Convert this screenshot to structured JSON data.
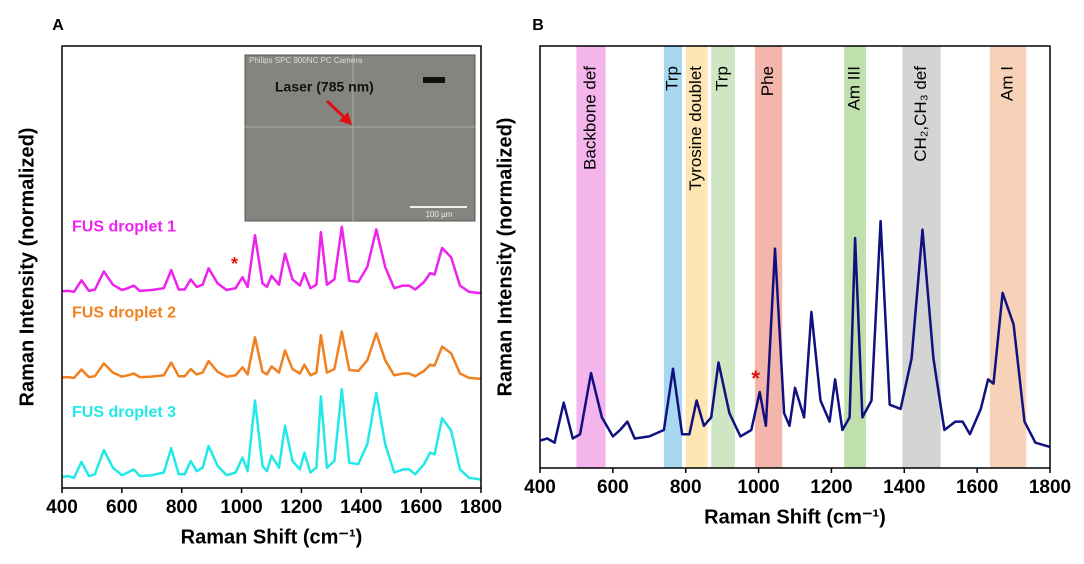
{
  "chart_data": [
    {
      "type": "line",
      "panel_label": "A",
      "xlabel": "Raman Shift (cm⁻¹)",
      "ylabel": "Raman Intensity (normalized)",
      "x": [
        400,
        420,
        440,
        465,
        490,
        510,
        540,
        570,
        600,
        620,
        640,
        660,
        700,
        740,
        765,
        790,
        810,
        830,
        850,
        870,
        890,
        920,
        950,
        980,
        1003,
        1020,
        1045,
        1070,
        1085,
        1100,
        1125,
        1145,
        1170,
        1195,
        1210,
        1230,
        1250,
        1265,
        1285,
        1310,
        1335,
        1360,
        1390,
        1420,
        1450,
        1480,
        1510,
        1540,
        1560,
        1580,
        1610,
        1630,
        1645,
        1670,
        1700,
        1730,
        1760,
        1780,
        1800
      ],
      "xlim": [
        400,
        1800
      ],
      "xticks": [
        400,
        600,
        800,
        1000,
        1200,
        1400,
        1600,
        1800
      ],
      "ylim": [
        0,
        10
      ],
      "series": [
        {
          "name": "FUS droplet 1",
          "color": "#ee22ee",
          "values": [
            4.45,
            4.46,
            4.44,
            4.7,
            4.46,
            4.49,
            4.9,
            4.6,
            4.48,
            4.52,
            4.58,
            4.46,
            4.48,
            4.52,
            4.93,
            4.49,
            4.49,
            4.72,
            4.55,
            4.6,
            4.97,
            4.63,
            4.48,
            4.52,
            4.77,
            4.55,
            5.72,
            4.63,
            4.55,
            4.8,
            4.6,
            5.3,
            4.72,
            4.58,
            4.86,
            4.52,
            4.6,
            5.79,
            4.6,
            4.72,
            5.91,
            4.69,
            4.66,
            5.0,
            5.85,
            5.0,
            4.52,
            4.58,
            4.58,
            4.49,
            4.66,
            4.86,
            4.83,
            5.43,
            5.22,
            4.58,
            4.44,
            4.42,
            4.41
          ]
        },
        {
          "name": "FUS droplet 2",
          "color": "#f08020",
          "values": [
            2.5,
            2.51,
            2.49,
            2.68,
            2.51,
            2.53,
            2.82,
            2.61,
            2.52,
            2.55,
            2.59,
            2.51,
            2.52,
            2.55,
            2.84,
            2.53,
            2.53,
            2.69,
            2.57,
            2.61,
            2.87,
            2.63,
            2.52,
            2.55,
            2.73,
            2.57,
            3.41,
            2.63,
            2.57,
            2.75,
            2.61,
            3.11,
            2.69,
            2.59,
            2.79,
            2.55,
            2.61,
            3.46,
            2.61,
            2.69,
            3.54,
            2.67,
            2.65,
            2.89,
            3.5,
            2.89,
            2.55,
            2.59,
            2.59,
            2.53,
            2.65,
            2.79,
            2.77,
            3.2,
            3.05,
            2.59,
            2.49,
            2.48,
            2.47
          ]
        },
        {
          "name": "FUS droplet 3",
          "color": "#22e8e8",
          "values": [
            0.25,
            0.27,
            0.23,
            0.59,
            0.27,
            0.31,
            0.86,
            0.46,
            0.29,
            0.35,
            0.42,
            0.27,
            0.29,
            0.35,
            0.9,
            0.31,
            0.31,
            0.61,
            0.38,
            0.46,
            0.95,
            0.5,
            0.29,
            0.35,
            0.69,
            0.38,
            1.98,
            0.5,
            0.38,
            0.73,
            0.46,
            1.41,
            0.61,
            0.42,
            0.8,
            0.35,
            0.46,
            2.07,
            0.46,
            0.61,
            2.23,
            0.57,
            0.54,
            0.99,
            2.15,
            0.99,
            0.35,
            0.42,
            0.42,
            0.31,
            0.54,
            0.8,
            0.76,
            1.58,
            1.3,
            0.42,
            0.23,
            0.21,
            0.19
          ]
        }
      ],
      "marker": "*",
      "inset": {
        "camera": "Philips SPC 900NC PC Camera",
        "label": "Laser (785 nm)",
        "scale": "100 µm"
      }
    },
    {
      "type": "line",
      "panel_label": "B",
      "xlabel": "Raman Shift (cm⁻¹)",
      "ylabel": "Raman Intensity (normalized)",
      "x": [
        400,
        420,
        440,
        465,
        490,
        510,
        540,
        570,
        600,
        620,
        640,
        660,
        700,
        740,
        765,
        790,
        810,
        830,
        850,
        870,
        890,
        920,
        950,
        980,
        1003,
        1020,
        1045,
        1070,
        1085,
        1100,
        1125,
        1145,
        1170,
        1195,
        1210,
        1230,
        1250,
        1265,
        1285,
        1310,
        1335,
        1360,
        1390,
        1420,
        1450,
        1480,
        1510,
        1540,
        1560,
        1580,
        1610,
        1630,
        1645,
        1670,
        1700,
        1730,
        1760,
        1780,
        1800
      ],
      "xlim": [
        400,
        1800
      ],
      "xticks": [
        400,
        600,
        800,
        1000,
        1200,
        1400,
        1600,
        1800
      ],
      "ylim": [
        0,
        10
      ],
      "series": [
        {
          "color": "#101080",
          "values": [
            0.65,
            0.7,
            0.6,
            1.55,
            0.7,
            0.8,
            2.25,
            1.2,
            0.75,
            0.9,
            1.1,
            0.7,
            0.75,
            0.9,
            2.35,
            0.8,
            0.8,
            1.6,
            1.0,
            1.2,
            2.5,
            1.3,
            0.75,
            0.9,
            1.8,
            1.0,
            5.2,
            1.3,
            1.0,
            1.9,
            1.2,
            3.7,
            1.6,
            1.1,
            2.1,
            0.9,
            1.2,
            5.45,
            1.2,
            1.6,
            5.85,
            1.5,
            1.4,
            2.6,
            5.65,
            2.6,
            0.9,
            1.1,
            1.1,
            0.8,
            1.4,
            2.1,
            2.0,
            4.15,
            3.4,
            1.1,
            0.6,
            0.55,
            0.5
          ]
        }
      ],
      "marker": "*",
      "bands": [
        {
          "label": "Backbone def",
          "range": [
            500,
            580
          ],
          "color": "#f4b4ec"
        },
        {
          "label": "Trp",
          "range": [
            740,
            790
          ],
          "color": "#a8d8f0"
        },
        {
          "label": "Tyrosine doublet",
          "range": [
            800,
            860
          ],
          "color": "#fde6b4"
        },
        {
          "label": "Trp",
          "range": [
            870,
            935
          ],
          "color": "#cfe6c2"
        },
        {
          "label": "Phe",
          "range": [
            990,
            1065
          ],
          "color": "#f2b6aa"
        },
        {
          "label": "Am III",
          "range": [
            1235,
            1295
          ],
          "color": "#bfe0ac"
        },
        {
          "label": "CH₂,CH₃ def",
          "range": [
            1395,
            1500
          ],
          "color": "#d4d4d4"
        },
        {
          "label": "Am I",
          "range": [
            1635,
            1735
          ],
          "color": "#f8d2b8"
        }
      ]
    }
  ]
}
